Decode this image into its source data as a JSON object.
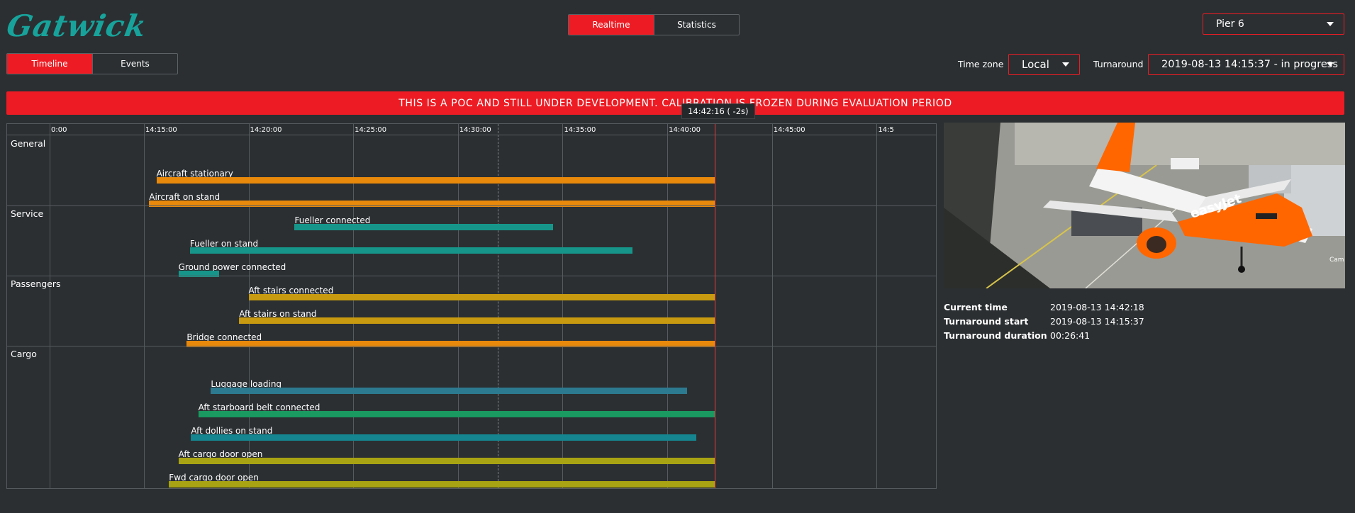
{
  "app": {
    "logo": "Gatwick"
  },
  "mode_tabs": [
    {
      "label": "Realtime",
      "active": true
    },
    {
      "label": "Statistics",
      "active": false
    }
  ],
  "pier": {
    "value": "Pier 6"
  },
  "view_tabs": [
    {
      "label": "Timeline",
      "active": true
    },
    {
      "label": "Events",
      "active": false
    }
  ],
  "timezone": {
    "label": "Time zone",
    "value": "Local"
  },
  "turnaround": {
    "label": "Turnaround",
    "value": "2019-08-13 14:15:37 - in progress"
  },
  "banner": "THIS IS A POC AND STILL UNDER DEVELOPMENT. CALIBRATION IS FROZEN DURING EVALUATION PERIOD",
  "timeline": {
    "start_minute": 10.5,
    "end_minute": 52.9,
    "now_minute": 42.27,
    "dashed_minute": 31.9,
    "now_tooltip": "14:42:16 ( -2s)",
    "ticks": [
      {
        "label": "0:00",
        "minute": 10.5
      },
      {
        "label": "14:15:00",
        "minute": 15
      },
      {
        "label": "14:20:00",
        "minute": 20
      },
      {
        "label": "14:25:00",
        "minute": 25
      },
      {
        "label": "14:30:00",
        "minute": 30
      },
      {
        "label": "14:35:00",
        "minute": 35
      },
      {
        "label": "14:40:00",
        "minute": 40
      },
      {
        "label": "14:45:00",
        "minute": 45
      },
      {
        "label": "14:5",
        "minute": 50
      }
    ],
    "sections": [
      {
        "name": "General",
        "rows": [
          {
            "label": "Aircraft stationary",
            "start": 15.6,
            "end": 42.27,
            "color": "#e8890c"
          },
          {
            "label": "Aircraft on stand",
            "start": 15.25,
            "end": 42.27,
            "color": "#e8890c"
          }
        ]
      },
      {
        "name": "Service",
        "rows": [
          {
            "label": "Fueller connected",
            "start": 22.2,
            "end": 34.55,
            "color": "#16968a"
          },
          {
            "label": "Fueller on stand",
            "start": 17.2,
            "end": 38.35,
            "color": "#16968a"
          },
          {
            "label": "Ground power connected",
            "start": 16.65,
            "end": 18.6,
            "color": "#16968a"
          }
        ]
      },
      {
        "name": "Passengers",
        "rows": [
          {
            "label": "Aft stairs connected",
            "start": 20,
            "end": 42.27,
            "color": "#c79a0f"
          },
          {
            "label": "Aft stairs on stand",
            "start": 19.55,
            "end": 42.27,
            "color": "#c79a0f"
          },
          {
            "label": "Bridge connected",
            "start": 17.05,
            "end": 42.27,
            "color": "#e8890c"
          }
        ]
      },
      {
        "name": "Cargo",
        "rows": [
          {
            "label": "Luggage loading",
            "start": 18.2,
            "end": 40.95,
            "color": "#2c7a8f"
          },
          {
            "label": "Aft starboard belt connected",
            "start": 17.6,
            "end": 42.27,
            "color": "#1a9960"
          },
          {
            "label": "Aft dollies on stand",
            "start": 17.25,
            "end": 41.4,
            "color": "#15858f"
          },
          {
            "label": "Aft cargo door open",
            "start": 16.65,
            "end": 42.27,
            "color": "#a8a312"
          },
          {
            "label": "Fwd cargo door open",
            "start": 16.2,
            "end": 42.27,
            "color": "#a8a312"
          }
        ]
      }
    ]
  },
  "camera": {
    "overlay_text": "Cam"
  },
  "details": [
    {
      "key": "Current time",
      "value": "2019-08-13 14:42:18"
    },
    {
      "key": "Turnaround start",
      "value": "2019-08-13 14:15:37"
    },
    {
      "key": "Turnaround duration",
      "value": "00:26:41"
    }
  ],
  "colors": {
    "accent": "#ed1c24",
    "background": "#2b2f32",
    "logo": "#17a39b"
  }
}
